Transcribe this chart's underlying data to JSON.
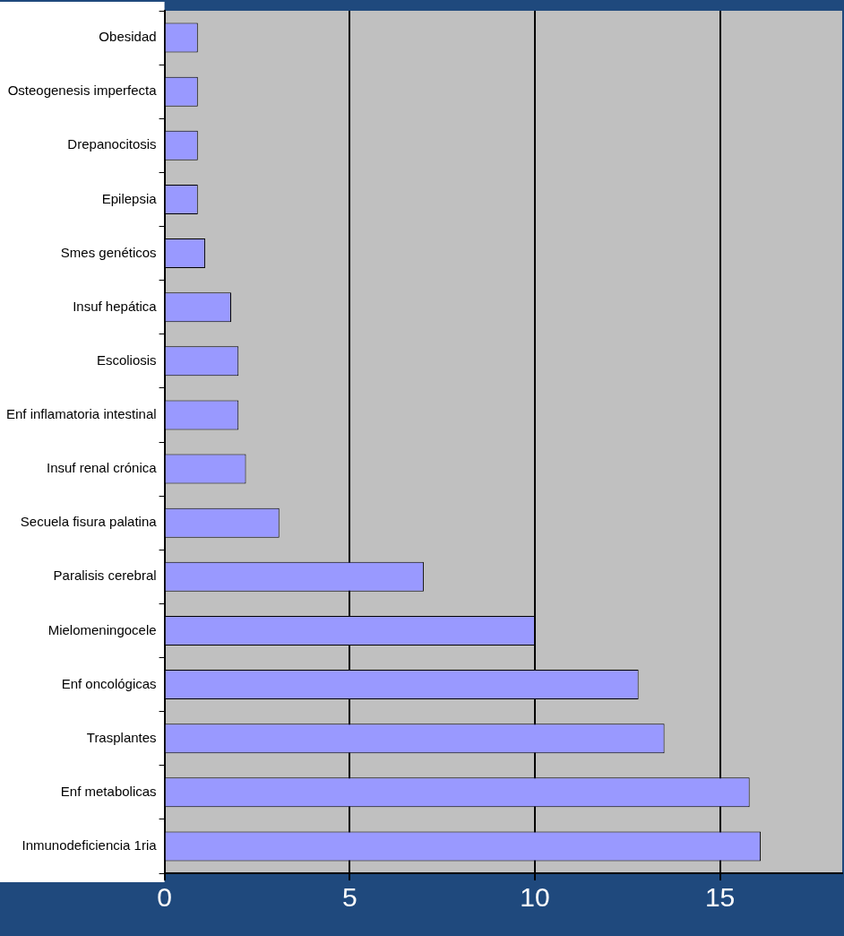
{
  "chart_data": {
    "type": "bar",
    "orientation": "horizontal",
    "categories": [
      "Obesidad",
      "Osteogenesis imperfecta",
      "Drepanocitosis",
      "Epilepsia",
      "Smes genéticos",
      "Insuf hepática",
      "Escoliosis",
      "Enf inflamatoria intestinal",
      "Insuf renal crónica",
      "Secuela fisura palatina",
      "Paralisis cerebral",
      "Mielomeningocele",
      "Enf oncológicas",
      "Trasplantes",
      "Enf metabolicas",
      "Inmunodeficiencia 1ria"
    ],
    "values": [
      0.9,
      0.9,
      0.9,
      0.9,
      1.1,
      1.8,
      2,
      2,
      2.2,
      3.1,
      7,
      10,
      12.8,
      13.5,
      15.8,
      16.1
    ],
    "color": "#9999ff",
    "xlim": [
      0,
      18.3
    ],
    "xticks": [
      0,
      5,
      10,
      15
    ],
    "grid": "x"
  }
}
